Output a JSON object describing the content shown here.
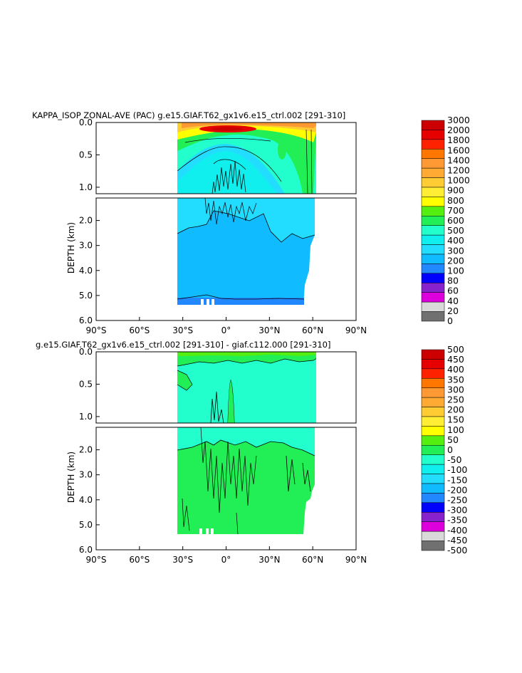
{
  "chart_data": [
    {
      "type": "heatmap",
      "title": "KAPPA_ISOP ZONAL-AVE (PAC) g.e15.GIAF.T62_gx1v6.e15_ctrl.002 [291-310]",
      "xlabel": "",
      "ylabel": "DEPTH (km)",
      "x_ticks": [
        "90°S",
        "60°S",
        "30°S",
        "0°",
        "30°N",
        "60°N",
        "90°N"
      ],
      "x_values": [
        -90,
        -60,
        -30,
        0,
        30,
        60,
        90
      ],
      "y_ticks_top": [
        "0.0",
        "0.5",
        "1.0"
      ],
      "y_ticks_bottom": [
        "2.0",
        "3.0",
        "4.0",
        "5.0",
        "6.0"
      ],
      "xlim": [
        -90,
        90
      ],
      "ylim_top": [
        0,
        1.1
      ],
      "ylim_bottom": [
        1.1,
        6.0
      ],
      "colorbar_levels": [
        "3000",
        "2000",
        "1800",
        "1600",
        "1400",
        "1200",
        "1000",
        "900",
        "800",
        "700",
        "600",
        "500",
        "400",
        "300",
        "200",
        "100",
        "80",
        "60",
        "40",
        "20",
        "0"
      ],
      "colorbar_colors": [
        "#cc0000",
        "#e60000",
        "#ff2200",
        "#ff7700",
        "#ff9933",
        "#ffaa33",
        "#ffcc33",
        "#ffee33",
        "#ffff00",
        "#55ee11",
        "#22ee55",
        "#22ffcc",
        "#11eeee",
        "#22ddff",
        "#11bbff",
        "#2288ff",
        "#0000ff",
        "#8822cc",
        "#dd00dd",
        "#d9d9d9",
        "#707070"
      ]
    },
    {
      "type": "heatmap",
      "title": "g.e15.GIAF.T62_gx1v6.e15_ctrl.002 [291-310] - giaf.c112.000 [291-310]",
      "xlabel": "",
      "ylabel": "DEPTH (km)",
      "x_ticks": [
        "90°S",
        "60°S",
        "30°S",
        "0°",
        "30°N",
        "60°N",
        "90°N"
      ],
      "x_values": [
        -90,
        -60,
        -30,
        0,
        30,
        60,
        90
      ],
      "y_ticks_top": [
        "0.0",
        "0.5",
        "1.0"
      ],
      "y_ticks_bottom": [
        "2.0",
        "3.0",
        "4.0",
        "5.0",
        "6.0"
      ],
      "xlim": [
        -90,
        90
      ],
      "ylim_top": [
        0,
        1.1
      ],
      "ylim_bottom": [
        1.1,
        6.0
      ],
      "colorbar_levels": [
        "500",
        "450",
        "400",
        "350",
        "300",
        "250",
        "200",
        "150",
        "100",
        "50",
        "0",
        "-50",
        "-100",
        "-150",
        "-200",
        "-250",
        "-300",
        "-350",
        "-400",
        "-450",
        "-500"
      ],
      "colorbar_colors": [
        "#cc0000",
        "#e60000",
        "#ff2200",
        "#ff7700",
        "#ff9933",
        "#ffaa33",
        "#ffcc33",
        "#ffee33",
        "#ffff00",
        "#55ee11",
        "#22ee55",
        "#22ffcc",
        "#11eeee",
        "#22ddff",
        "#11bbff",
        "#2288ff",
        "#0000ff",
        "#8822cc",
        "#dd00dd",
        "#d9d9d9",
        "#707070"
      ]
    }
  ]
}
